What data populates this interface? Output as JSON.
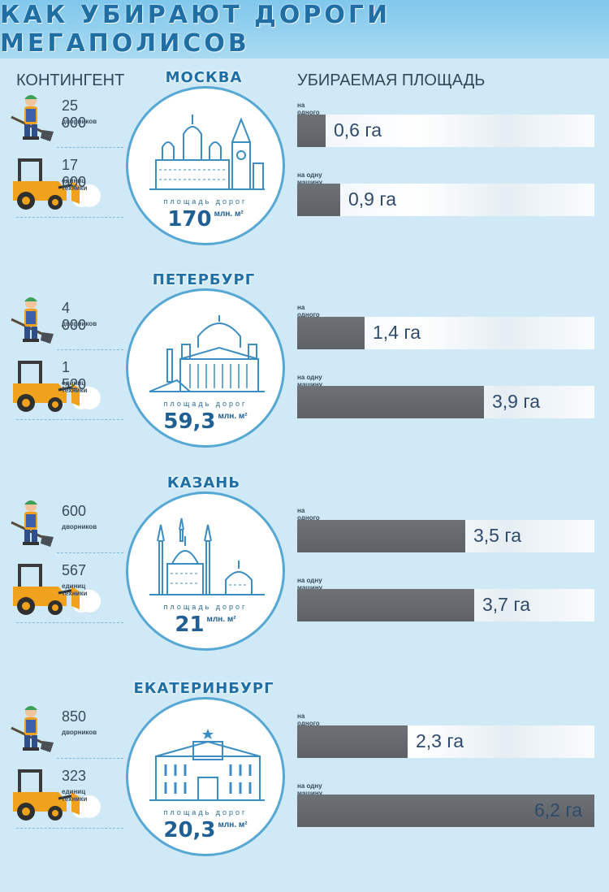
{
  "title": "КАК УБИРАЮТ ДОРОГИ МЕГАПОЛИСОВ",
  "left_header": "КОНТИНГЕНТ",
  "right_header": "УБИРАЕМАЯ ПЛОЩАДЬ",
  "area_label": "площадь дорог",
  "area_unit": "млн. м²",
  "janitor_caption": "на одного дворника",
  "machine_caption": "на одну машину",
  "janitor_unit": "дворников",
  "machine_unit": "единиц техники",
  "colors": {
    "bar": "#616569",
    "accent": "#1f6fa5",
    "background": "#cfe9f6"
  },
  "icons": {
    "worker": "janitor-with-shovel-icon",
    "machine": "snow-loader-icon"
  },
  "chart_data": {
    "type": "bar",
    "orientation": "horizontal",
    "value_unit": "га",
    "x_max": 6.2,
    "cities": [
      {
        "name": "МОСКВА",
        "road_area": "170",
        "janitors": "25 000",
        "machines": "17 600",
        "per_janitor": 0.6,
        "per_janitor_text": "0,6 га",
        "per_machine": 0.9,
        "per_machine_text": "0,9 га"
      },
      {
        "name": "ПЕТЕРБУРГ",
        "road_area": "59,3",
        "janitors": "4 000",
        "machines": "1 520",
        "per_janitor": 1.4,
        "per_janitor_text": "1,4 га",
        "per_machine": 3.9,
        "per_machine_text": "3,9 га"
      },
      {
        "name": "КАЗАНЬ",
        "road_area": "21",
        "janitors": "600",
        "machines": "567",
        "per_janitor": 3.5,
        "per_janitor_text": "3,5 га",
        "per_machine": 3.7,
        "per_machine_text": "3,7 га"
      },
      {
        "name": "ЕКАТЕРИНБУРГ",
        "road_area": "20,3",
        "janitors": "850",
        "machines": "323",
        "per_janitor": 2.3,
        "per_janitor_text": "2,3 га",
        "per_machine": 6.2,
        "per_machine_text": "6,2 га"
      }
    ]
  }
}
